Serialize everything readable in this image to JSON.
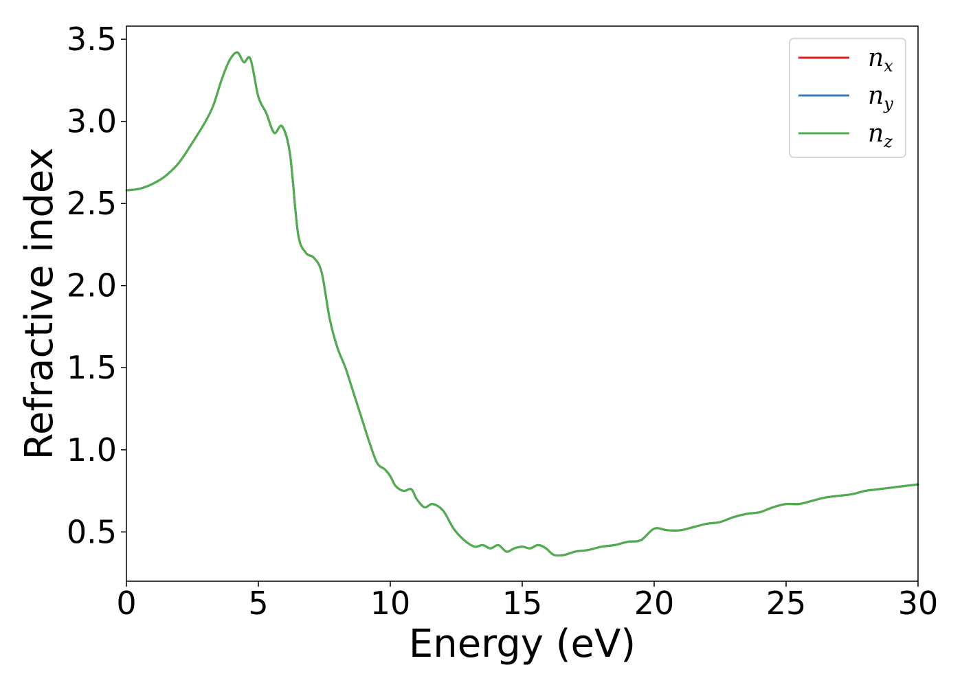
{
  "chart_data": {
    "type": "line",
    "title": "",
    "xlabel": "Energy (eV)",
    "ylabel": "Refractive index",
    "xlim": [
      0,
      30
    ],
    "ylim": [
      0.2,
      3.58
    ],
    "xticks": [
      0,
      5,
      10,
      15,
      20,
      25,
      30
    ],
    "xtick_labels": [
      "0",
      "5",
      "10",
      "15",
      "20",
      "25",
      "30"
    ],
    "yticks": [
      0.5,
      1.0,
      1.5,
      2.0,
      2.5,
      3.0,
      3.5
    ],
    "ytick_labels": [
      "0.5",
      "1.0",
      "1.5",
      "2.0",
      "2.5",
      "3.0",
      "3.5"
    ],
    "grid": false,
    "legend_position": "top-right",
    "legend": [
      {
        "base": "n",
        "sub": "x",
        "color": "#e41a1c"
      },
      {
        "base": "n",
        "sub": "y",
        "color": "#377eb8"
      },
      {
        "base": "n",
        "sub": "z",
        "color": "#4daf4a"
      }
    ],
    "x": [
      0,
      0.5,
      1.0,
      1.5,
      2.0,
      2.5,
      3.0,
      3.3,
      3.6,
      3.9,
      4.2,
      4.45,
      4.7,
      5.0,
      5.3,
      5.6,
      5.9,
      6.2,
      6.5,
      6.8,
      7.1,
      7.4,
      7.7,
      8.0,
      8.3,
      8.6,
      8.9,
      9.2,
      9.5,
      9.8,
      10.0,
      10.2,
      10.5,
      10.8,
      11.0,
      11.3,
      11.6,
      12.0,
      12.4,
      12.8,
      13.2,
      13.5,
      13.8,
      14.1,
      14.4,
      14.7,
      15.0,
      15.3,
      15.6,
      15.9,
      16.2,
      16.6,
      17.0,
      17.5,
      18.0,
      18.5,
      19.0,
      19.5,
      20.0,
      20.5,
      21.0,
      21.5,
      22.0,
      22.5,
      23.0,
      23.5,
      24.0,
      24.5,
      25.0,
      25.5,
      26.0,
      26.5,
      27.0,
      27.5,
      28.0,
      28.5,
      29.0,
      29.5,
      30.0
    ],
    "series": [
      {
        "name": "n_x",
        "color": "#e41a1c",
        "values": [
          2.58,
          2.59,
          2.62,
          2.67,
          2.75,
          2.87,
          3.0,
          3.1,
          3.25,
          3.37,
          3.42,
          3.36,
          3.38,
          3.15,
          3.05,
          2.93,
          2.97,
          2.8,
          2.32,
          2.2,
          2.17,
          2.08,
          1.8,
          1.62,
          1.5,
          1.35,
          1.2,
          1.05,
          0.92,
          0.88,
          0.84,
          0.78,
          0.75,
          0.76,
          0.7,
          0.65,
          0.67,
          0.63,
          0.52,
          0.45,
          0.41,
          0.42,
          0.4,
          0.42,
          0.38,
          0.4,
          0.41,
          0.4,
          0.42,
          0.4,
          0.36,
          0.36,
          0.38,
          0.39,
          0.41,
          0.42,
          0.44,
          0.45,
          0.52,
          0.51,
          0.51,
          0.53,
          0.55,
          0.56,
          0.59,
          0.61,
          0.62,
          0.65,
          0.67,
          0.67,
          0.69,
          0.71,
          0.72,
          0.73,
          0.75,
          0.76,
          0.77,
          0.78,
          0.79
        ]
      },
      {
        "name": "n_y",
        "color": "#377eb8",
        "values": [
          2.58,
          2.59,
          2.62,
          2.67,
          2.75,
          2.87,
          3.0,
          3.1,
          3.25,
          3.37,
          3.42,
          3.36,
          3.38,
          3.15,
          3.05,
          2.93,
          2.97,
          2.8,
          2.32,
          2.2,
          2.17,
          2.08,
          1.8,
          1.62,
          1.5,
          1.35,
          1.2,
          1.05,
          0.92,
          0.88,
          0.84,
          0.78,
          0.75,
          0.76,
          0.7,
          0.65,
          0.67,
          0.63,
          0.52,
          0.45,
          0.41,
          0.42,
          0.4,
          0.42,
          0.38,
          0.4,
          0.41,
          0.4,
          0.42,
          0.4,
          0.36,
          0.36,
          0.38,
          0.39,
          0.41,
          0.42,
          0.44,
          0.45,
          0.52,
          0.51,
          0.51,
          0.53,
          0.55,
          0.56,
          0.59,
          0.61,
          0.62,
          0.65,
          0.67,
          0.67,
          0.69,
          0.71,
          0.72,
          0.73,
          0.75,
          0.76,
          0.77,
          0.78,
          0.79
        ]
      },
      {
        "name": "n_z",
        "color": "#4daf4a",
        "values": [
          2.58,
          2.59,
          2.62,
          2.67,
          2.75,
          2.87,
          3.0,
          3.1,
          3.25,
          3.37,
          3.42,
          3.36,
          3.38,
          3.15,
          3.05,
          2.93,
          2.97,
          2.8,
          2.32,
          2.2,
          2.17,
          2.08,
          1.8,
          1.62,
          1.5,
          1.35,
          1.2,
          1.05,
          0.92,
          0.88,
          0.84,
          0.78,
          0.75,
          0.76,
          0.7,
          0.65,
          0.67,
          0.63,
          0.52,
          0.45,
          0.41,
          0.42,
          0.4,
          0.42,
          0.38,
          0.4,
          0.41,
          0.4,
          0.42,
          0.4,
          0.36,
          0.36,
          0.38,
          0.39,
          0.41,
          0.42,
          0.44,
          0.45,
          0.52,
          0.51,
          0.51,
          0.53,
          0.55,
          0.56,
          0.59,
          0.61,
          0.62,
          0.65,
          0.67,
          0.67,
          0.69,
          0.71,
          0.72,
          0.73,
          0.75,
          0.76,
          0.77,
          0.78,
          0.79
        ]
      }
    ]
  }
}
